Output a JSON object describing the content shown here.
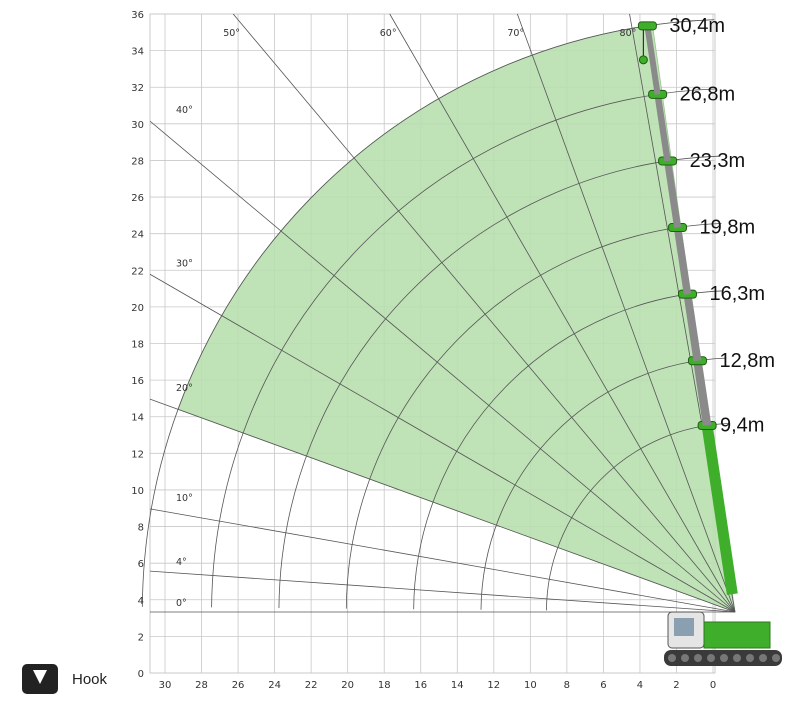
{
  "chart_data": {
    "type": "diagram",
    "x_ticks": [
      "30",
      "28",
      "26",
      "24",
      "22",
      "20",
      "18",
      "16",
      "14",
      "12",
      "10",
      "8",
      "6",
      "4",
      "2",
      "0"
    ],
    "y_ticks": [
      "0",
      "2",
      "4",
      "6",
      "8",
      "10",
      "12",
      "14",
      "16",
      "18",
      "20",
      "22",
      "24",
      "26",
      "28",
      "30",
      "32",
      "34",
      "36"
    ],
    "xlim": [
      30,
      0
    ],
    "ylim": [
      0,
      36
    ],
    "angle_labels": [
      {
        "label": "0°",
        "deg": 0
      },
      {
        "label": "4°",
        "deg": 4
      },
      {
        "label": "10°",
        "deg": 10
      },
      {
        "label": "20°",
        "deg": 20
      },
      {
        "label": "30°",
        "deg": 30
      },
      {
        "label": "40°",
        "deg": 40
      },
      {
        "label": "50°",
        "deg": 50
      },
      {
        "label": "60°",
        "deg": 60
      },
      {
        "label": "70°",
        "deg": 70
      },
      {
        "label": "80°",
        "deg": 80
      }
    ],
    "boom_lengths": [
      {
        "label": "9,4m",
        "value": 9.4
      },
      {
        "label": "12,8m",
        "value": 12.8
      },
      {
        "label": "16,3m",
        "value": 16.3
      },
      {
        "label": "19,8m",
        "value": 19.8
      },
      {
        "label": "23,3m",
        "value": 23.3
      },
      {
        "label": "26,8m",
        "value": 26.8
      },
      {
        "label": "30,4m",
        "value": 30.4
      }
    ],
    "working_range_deg": [
      20,
      82
    ],
    "colors": {
      "range_fill": "#b9dfb0",
      "crane": "#3fae2a",
      "grid": "#c8c8c8",
      "lines": "#555555"
    }
  },
  "legend": {
    "label": "Hook",
    "icon": "hook-icon"
  }
}
